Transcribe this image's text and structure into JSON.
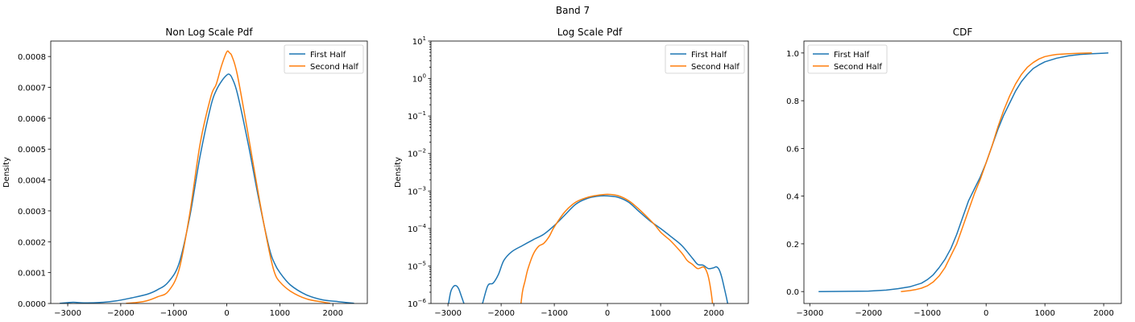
{
  "suptitle": "Band 7",
  "colors": {
    "first": "#1f77b4",
    "second": "#ff7f0e"
  },
  "chart_data": [
    {
      "type": "line",
      "title": "Non Log Scale Pdf",
      "xlabel": "",
      "ylabel": "Density",
      "xlim": [
        -3320,
        2650
      ],
      "ylim": [
        0,
        0.00085
      ],
      "yscale": "linear",
      "xticks": [
        -3000,
        -2000,
        -1000,
        0,
        1000,
        2000
      ],
      "xtick_labels": [
        "−3000",
        "−2000",
        "−1000",
        "0",
        "1000",
        "2000"
      ],
      "yticks": [
        0,
        0.0001,
        0.0002,
        0.0003,
        0.0004,
        0.0005,
        0.0006,
        0.0007,
        0.0008
      ],
      "ytick_labels": [
        "0.0000",
        "0.0001",
        "0.0002",
        "0.0003",
        "0.0004",
        "0.0005",
        "0.0006",
        "0.0007",
        "0.0008"
      ],
      "legend": "top-right",
      "series": [
        {
          "name": "First Half",
          "x": [
            -3150,
            -2900,
            -2700,
            -2400,
            -2100,
            -1800,
            -1500,
            -1300,
            -1100,
            -900,
            -700,
            -500,
            -300,
            -200,
            -100,
            0,
            50,
            100,
            200,
            400,
            600,
            800,
            900,
            1000,
            1200,
            1500,
            1800,
            2100,
            2400
          ],
          "y": [
            5e-07,
            4e-06,
            2e-06,
            3e-06,
            8e-06,
            1.8e-05,
            3e-05,
            4.5e-05,
            7e-05,
            0.00013,
            0.00028,
            0.00048,
            0.00064,
            0.00069,
            0.00072,
            0.00074,
            0.000742,
            0.00073,
            0.00068,
            0.00052,
            0.00034,
            0.00018,
            0.00013,
            0.0001,
            6e-05,
            2.8e-05,
            1.2e-05,
            6e-06,
            5e-07
          ]
        },
        {
          "name": "Second Half",
          "x": [
            -1900,
            -1700,
            -1500,
            -1300,
            -1100,
            -900,
            -700,
            -500,
            -300,
            -200,
            -100,
            0,
            50,
            100,
            200,
            400,
            600,
            800,
            900,
            1000,
            1200,
            1500,
            1800,
            1950
          ],
          "y": [
            5e-07,
            3e-06,
            9e-06,
            2.2e-05,
            4e-05,
            0.00011,
            0.00029,
            0.00052,
            0.00067,
            0.00071,
            0.00077,
            0.000815,
            0.000812,
            0.0008,
            0.00074,
            0.00055,
            0.00035,
            0.00017,
            0.0001,
            7e-05,
            4e-05,
            1.5e-05,
            5e-06,
            5e-07
          ]
        }
      ]
    },
    {
      "type": "line",
      "title": "Log Scale Pdf",
      "xlabel": "",
      "ylabel": "Density",
      "xlim": [
        -3320,
        2650
      ],
      "ylim": [
        1e-06,
        10
      ],
      "yscale": "log",
      "xticks": [
        -3000,
        -2000,
        -1000,
        0,
        1000,
        2000
      ],
      "xtick_labels": [
        "−3000",
        "−2000",
        "−1000",
        "0",
        "1000",
        "2000"
      ],
      "yticks": [
        1e-06,
        1e-05,
        0.0001,
        0.001,
        0.01,
        0.1,
        1,
        10
      ],
      "ytick_labels": [
        {
          "base": "10",
          "exp": "−6"
        },
        {
          "base": "10",
          "exp": "−5"
        },
        {
          "base": "10",
          "exp": "−4"
        },
        {
          "base": "10",
          "exp": "−3"
        },
        {
          "base": "10",
          "exp": "−2"
        },
        {
          "base": "10",
          "exp": "−1"
        },
        {
          "base": "10",
          "exp": "0"
        },
        {
          "base": "10",
          "exp": "1"
        }
      ],
      "legend": "top-right",
      "series": [
        {
          "name": "First Half",
          "x": [
            -3000,
            -2950,
            -2900,
            -2850,
            -2800,
            -2750,
            -2700,
            -2650,
            -2400,
            -2350,
            -2250,
            -2150,
            -2050,
            -1950,
            -1800,
            -1600,
            -1400,
            -1200,
            -1000,
            -800,
            -600,
            -400,
            -200,
            0,
            200,
            400,
            600,
            800,
            1000,
            1200,
            1400,
            1600,
            1700,
            1800,
            1900,
            2000,
            2050,
            2100,
            2150,
            2200,
            2250,
            2300
          ],
          "y": [
            8e-07,
            2e-06,
            2.8e-06,
            3e-06,
            2.5e-06,
            1.6e-06,
            1e-06,
            6e-07,
            6e-07,
            1e-06,
            3e-06,
            3.5e-06,
            6e-06,
            1.4e-05,
            2.4e-05,
            3.5e-05,
            5e-05,
            7e-05,
            0.00012,
            0.00023,
            0.00044,
            0.00062,
            0.00072,
            0.00074,
            0.00068,
            0.0005,
            0.00028,
            0.00016,
            0.0001,
            6e-05,
            3.5e-05,
            1.6e-05,
            1.1e-05,
            1.05e-05,
            8.5e-06,
            9e-06,
            9.5e-06,
            8e-06,
            5e-06,
            2.5e-06,
            1.2e-06,
            5e-07
          ]
        },
        {
          "name": "Second Half",
          "x": [
            -1650,
            -1600,
            -1550,
            -1500,
            -1400,
            -1300,
            -1200,
            -1100,
            -1000,
            -800,
            -600,
            -400,
            -200,
            0,
            200,
            400,
            600,
            800,
            900,
            1000,
            1100,
            1200,
            1400,
            1500,
            1600,
            1700,
            1800,
            1850,
            1900,
            1950,
            2000
          ],
          "y": [
            5e-07,
            2e-06,
            4e-06,
            8e-06,
            2e-05,
            3.3e-05,
            4e-05,
            6e-05,
            0.00011,
            0.00028,
            0.0005,
            0.00066,
            0.00076,
            0.000815,
            0.00075,
            0.00055,
            0.00032,
            0.00017,
            0.00012,
            8e-05,
            6e-05,
            4.5e-05,
            2.2e-05,
            1.4e-05,
            1.1e-05,
            8.5e-06,
            9.5e-06,
            8e-06,
            5e-06,
            2e-06,
            5e-07
          ]
        }
      ]
    },
    {
      "type": "line",
      "title": "CDF",
      "xlabel": "",
      "ylabel": "",
      "xlim": [
        -3100,
        2300
      ],
      "ylim": [
        -0.05,
        1.05
      ],
      "yscale": "linear",
      "xticks": [
        -3000,
        -2000,
        -1000,
        0,
        1000,
        2000
      ],
      "xtick_labels": [
        "−3000",
        "−2000",
        "−1000",
        "0",
        "1000",
        "2000"
      ],
      "yticks": [
        0,
        0.2,
        0.4,
        0.6,
        0.8,
        1.0
      ],
      "ytick_labels": [
        "0.0",
        "0.2",
        "0.4",
        "0.6",
        "0.8",
        "1.0"
      ],
      "legend": "top-left",
      "series": [
        {
          "name": "First Half",
          "x": [
            -2850,
            -2500,
            -2000,
            -1700,
            -1500,
            -1300,
            -1100,
            -1000,
            -900,
            -800,
            -700,
            -600,
            -500,
            -400,
            -300,
            -200,
            -100,
            0,
            100,
            200,
            300,
            400,
            500,
            600,
            700,
            800,
            900,
            1000,
            1200,
            1400,
            1600,
            1800,
            2000,
            2080
          ],
          "y": [
            0.0,
            0.0005,
            0.002,
            0.006,
            0.012,
            0.02,
            0.035,
            0.05,
            0.07,
            0.1,
            0.135,
            0.18,
            0.24,
            0.31,
            0.38,
            0.43,
            0.48,
            0.54,
            0.61,
            0.68,
            0.74,
            0.79,
            0.84,
            0.88,
            0.91,
            0.935,
            0.95,
            0.963,
            0.978,
            0.988,
            0.994,
            0.997,
            0.999,
            1.0
          ]
        },
        {
          "name": "Second Half",
          "x": [
            -1450,
            -1300,
            -1200,
            -1100,
            -1000,
            -900,
            -800,
            -700,
            -600,
            -500,
            -400,
            -300,
            -200,
            -100,
            0,
            100,
            200,
            300,
            400,
            500,
            600,
            700,
            800,
            900,
            1000,
            1100,
            1200,
            1400,
            1600,
            1800
          ],
          "y": [
            0.0,
            0.004,
            0.008,
            0.014,
            0.024,
            0.04,
            0.065,
            0.1,
            0.15,
            0.2,
            0.27,
            0.34,
            0.41,
            0.47,
            0.54,
            0.61,
            0.69,
            0.76,
            0.82,
            0.87,
            0.91,
            0.94,
            0.96,
            0.975,
            0.985,
            0.99,
            0.994,
            0.997,
            0.999,
            1.0
          ]
        }
      ]
    }
  ]
}
